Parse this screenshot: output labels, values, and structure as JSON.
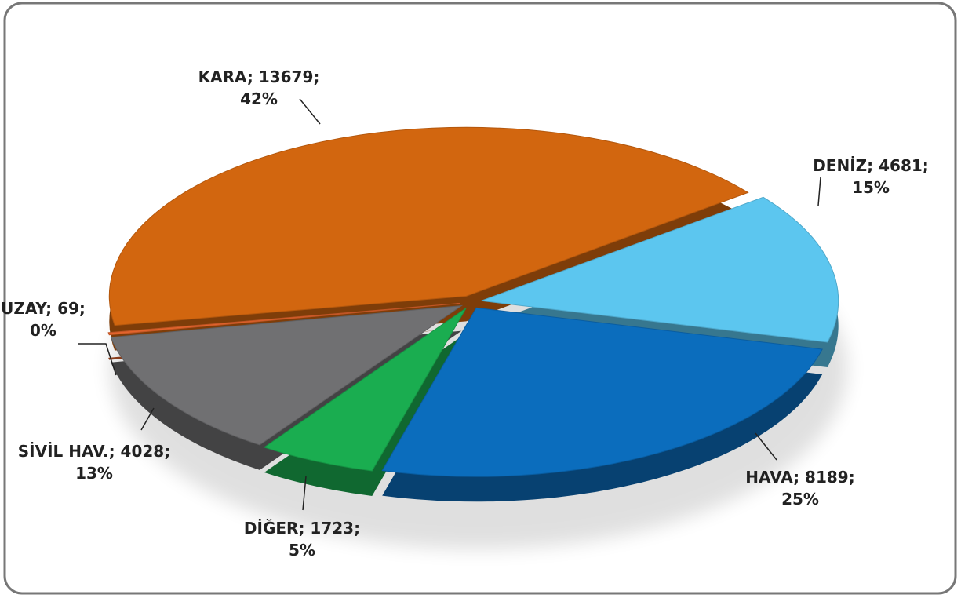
{
  "chart_data": {
    "type": "pie",
    "values": [
      13679,
      4681,
      8189,
      1723,
      4028,
      69
    ],
    "value_labels": [
      "KARA; 13679; 42%",
      "DENİZ; 4681; 15%",
      "HAVA; 8189; 25%",
      "DİĞER; 1723; 5%",
      "SİVİL HAV.; 4028; 13%",
      "UZAY; 69; 0%"
    ],
    "colors": [
      "#d2660f",
      "#5cc6ef",
      "#0b6dbd",
      "#1aad50",
      "#707072",
      "#e2642c"
    ]
  }
}
